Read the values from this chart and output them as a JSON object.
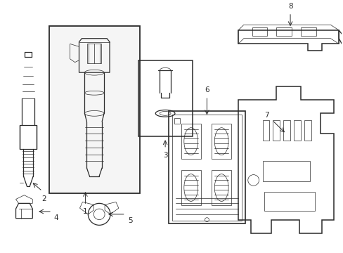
{
  "bg_color": "#ffffff",
  "line_color": "#2a2a2a",
  "lw_main": 0.9,
  "lw_thin": 0.5,
  "figsize": [
    4.89,
    3.6
  ],
  "dpi": 100,
  "label_fontsize": 7.5
}
